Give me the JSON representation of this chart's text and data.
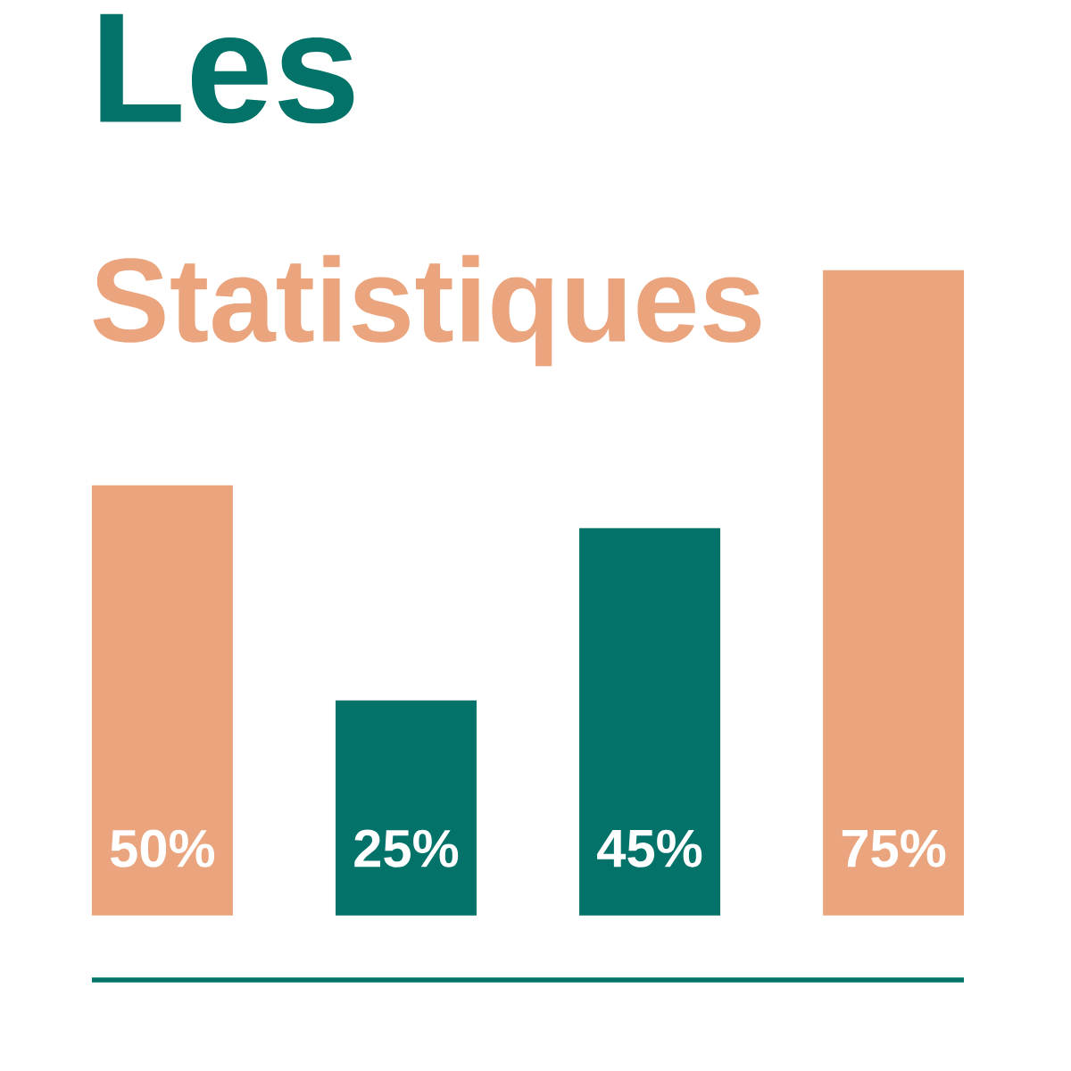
{
  "chart_data": {
    "type": "bar",
    "title": "Les",
    "subtitle": "Statistiques",
    "categories": [
      null,
      null,
      null,
      null
    ],
    "values": [
      50,
      25,
      45,
      75
    ],
    "colors": [
      "#eba57e",
      "#03736a",
      "#03736a",
      "#eba57e"
    ],
    "value_labels": [
      "50%",
      "25%",
      "45%",
      "75%"
    ]
  }
}
